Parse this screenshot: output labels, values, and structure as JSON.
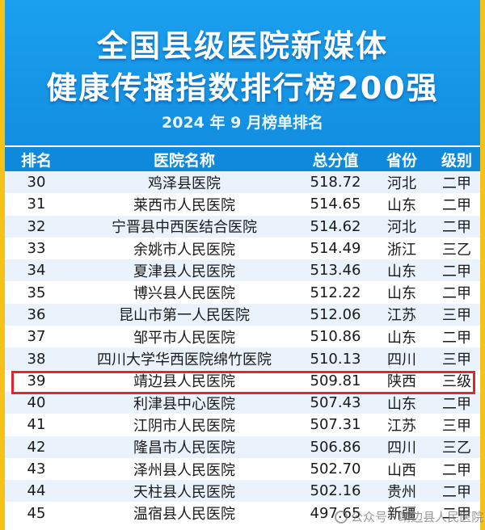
{
  "header": {
    "title_line1": "全国县级医院新媒体",
    "title_line2": "健康传播指数排行榜200强",
    "subtitle": "2024 年 9 月榜单排名"
  },
  "table": {
    "columns": [
      "排名",
      "医院名称",
      "总分值",
      "省份",
      "级别"
    ],
    "rows": [
      {
        "rank": "30",
        "name": "鸡泽县医院",
        "score": "518.72",
        "province": "河北",
        "level": "二甲"
      },
      {
        "rank": "31",
        "name": "莱西市人民医院",
        "score": "514.65",
        "province": "山东",
        "level": "二甲"
      },
      {
        "rank": "32",
        "name": "宁晋县中西医结合医院",
        "score": "514.62",
        "province": "河北",
        "level": "二甲"
      },
      {
        "rank": "33",
        "name": "余姚市人民医院",
        "score": "514.49",
        "province": "浙江",
        "level": "三乙"
      },
      {
        "rank": "34",
        "name": "夏津县人民医院",
        "score": "513.46",
        "province": "山东",
        "level": "二甲"
      },
      {
        "rank": "35",
        "name": "博兴县人民医院",
        "score": "512.22",
        "province": "山东",
        "level": "二甲"
      },
      {
        "rank": "36",
        "name": "昆山市第一人民医院",
        "score": "512.06",
        "province": "江苏",
        "level": "三甲"
      },
      {
        "rank": "37",
        "name": "邹平市人民医院",
        "score": "510.86",
        "province": "山东",
        "level": "二甲"
      },
      {
        "rank": "38",
        "name": "四川大学华西医院绵竹医院",
        "score": "510.13",
        "province": "四川",
        "level": "三甲"
      },
      {
        "rank": "39",
        "name": "靖边县人民医院",
        "score": "509.81",
        "province": "陕西",
        "level": "三级"
      },
      {
        "rank": "40",
        "name": "利津县中心医院",
        "score": "507.43",
        "province": "山东",
        "level": "二甲"
      },
      {
        "rank": "41",
        "name": "江阴市人民医院",
        "score": "507.31",
        "province": "江苏",
        "level": "三甲"
      },
      {
        "rank": "42",
        "name": "隆昌市人民医院",
        "score": "506.86",
        "province": "四川",
        "level": "三乙"
      },
      {
        "rank": "43",
        "name": "泽州县人民医院",
        "score": "502.70",
        "province": "山西",
        "level": "二甲"
      },
      {
        "rank": "44",
        "name": "天柱县人民医院",
        "score": "502.16",
        "province": "贵州",
        "level": "二甲"
      },
      {
        "rank": "45",
        "name": "温宿县人民医院",
        "score": "497.65",
        "province": "新疆",
        "level": "二甲"
      }
    ],
    "highlight_rank": "39"
  },
  "watermark": {
    "text": "公众号 · 靖边县人民医院",
    "icon": "wechat-icon"
  },
  "colors": {
    "header_blue": "#138ee0",
    "header_row_blue": "#0f89db",
    "highlight_red": "#e2262f",
    "frame_yellow": "#f5c21a"
  }
}
